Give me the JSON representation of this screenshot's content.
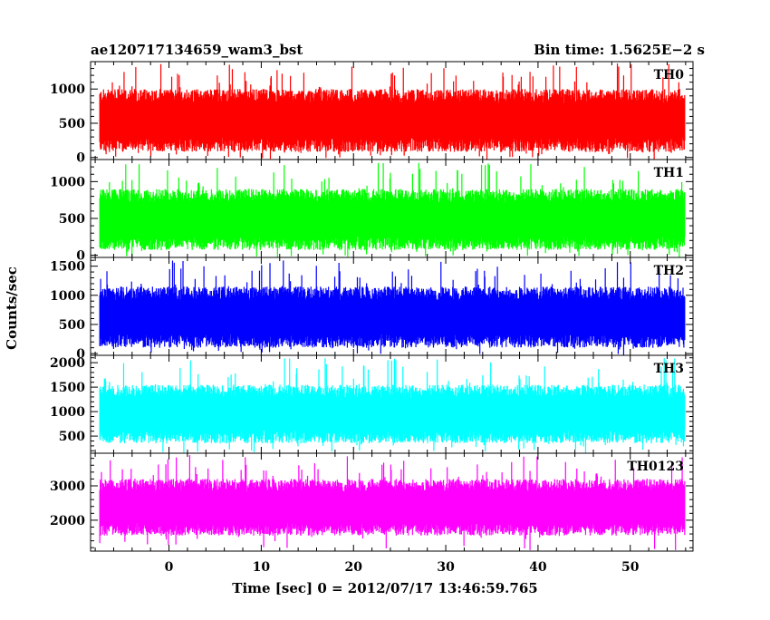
{
  "header": {
    "title": "ae120717134659_wam3_bst",
    "bin_time": "Bin time: 1.5625E−2 s"
  },
  "xlabel": "Time [sec] 0 = 2012/07/17 13:46:59.765",
  "ylabel": "Counts/sec",
  "chart_data": [
    {
      "type": "line",
      "label": "TH0",
      "color": "#ff0000",
      "xlim": [
        -8.5,
        56.8
      ],
      "ylim": [
        -30,
        1400
      ],
      "yticks": [
        0,
        500,
        1000
      ],
      "xticks": [
        0,
        10,
        20,
        30,
        40,
        50
      ],
      "data_x_range": [
        -7.5,
        55.9
      ],
      "typical_range": [
        80,
        1000
      ],
      "max_peak": 1380
    },
    {
      "type": "line",
      "label": "TH1",
      "color": "#00ff00",
      "xlim": [
        -8.5,
        56.8
      ],
      "ylim": [
        -30,
        1300
      ],
      "yticks": [
        0,
        500,
        1000
      ],
      "xticks": [
        0,
        10,
        20,
        30,
        40,
        50
      ],
      "data_x_range": [
        -7.5,
        55.9
      ],
      "typical_range": [
        70,
        900
      ],
      "max_peak": 1260
    },
    {
      "type": "line",
      "label": "TH2",
      "color": "#0000ff",
      "xlim": [
        -8.5,
        56.8
      ],
      "ylim": [
        -30,
        1650
      ],
      "yticks": [
        0,
        500,
        1000,
        1500
      ],
      "xticks": [
        0,
        10,
        20,
        30,
        40,
        50
      ],
      "data_x_range": [
        -7.5,
        55.9
      ],
      "typical_range": [
        100,
        1150
      ],
      "max_peak": 1600
    },
    {
      "type": "line",
      "label": "TH3",
      "color": "#00ffff",
      "xlim": [
        -8.5,
        56.8
      ],
      "ylim": [
        150,
        2150
      ],
      "yticks": [
        500,
        1000,
        1500,
        2000
      ],
      "xticks": [
        0,
        10,
        20,
        30,
        40,
        50
      ],
      "data_x_range": [
        -7.5,
        55.9
      ],
      "typical_range": [
        350,
        1550
      ],
      "max_peak": 2100
    },
    {
      "type": "line",
      "label": "TH0123",
      "color": "#ff00ff",
      "xlim": [
        -8.5,
        56.8
      ],
      "ylim": [
        1100,
        3950
      ],
      "yticks": [
        2000,
        3000
      ],
      "xticks": [
        0,
        10,
        20,
        30,
        40,
        50
      ],
      "xticklabels": [
        "0",
        "10",
        "20",
        "30",
        "40",
        "50"
      ],
      "data_x_range": [
        -7.5,
        55.9
      ],
      "typical_range": [
        1550,
        3200
      ],
      "max_peak": 3900
    }
  ]
}
